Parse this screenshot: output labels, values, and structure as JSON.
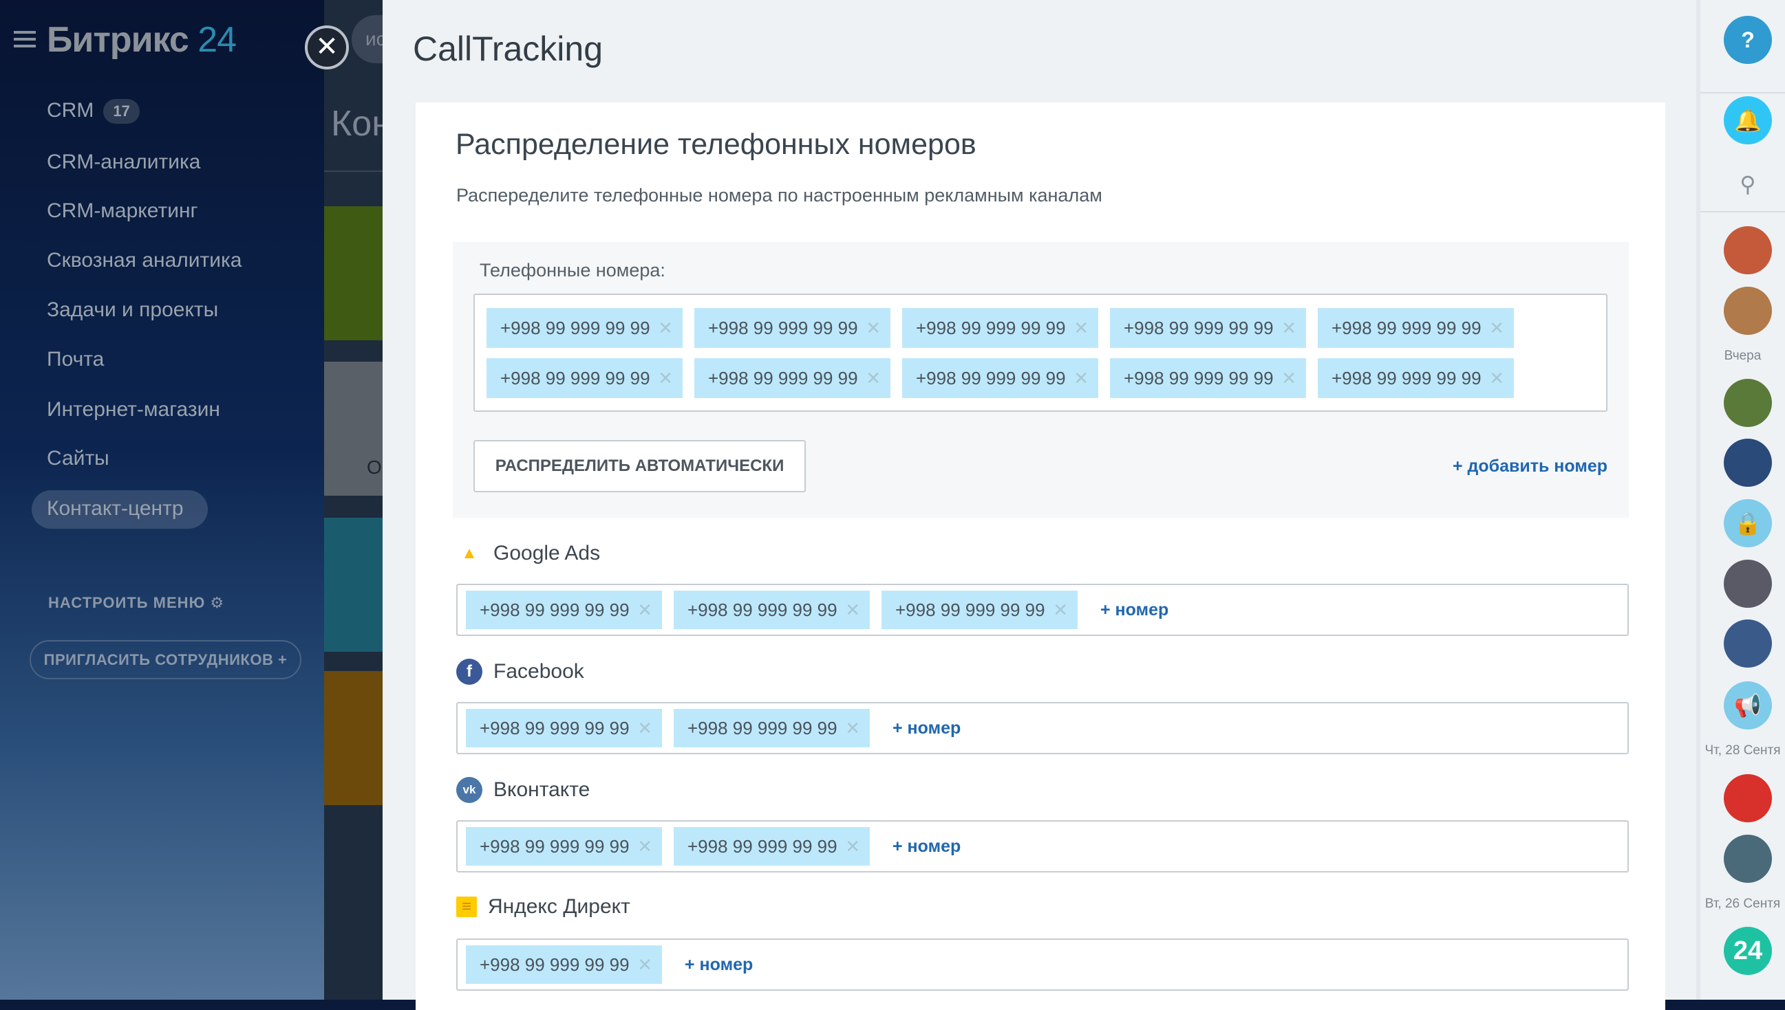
{
  "sidebar": {
    "logo_text": "Битрикс",
    "logo_num": "24",
    "items": [
      {
        "label": "CRM",
        "badge": "17"
      },
      {
        "label": "CRM-аналитика"
      },
      {
        "label": "CRM-маркетинг"
      },
      {
        "label": "Сквозная аналитика"
      },
      {
        "label": "Задачи и проекты"
      },
      {
        "label": "Почта"
      },
      {
        "label": "Интернет-магазин"
      },
      {
        "label": "Сайты"
      },
      {
        "label": "Контакт-центр"
      }
    ],
    "configure": "НАСТРОИТЬ МЕНЮ",
    "invite": "ПРИГЛАСИТЬ СОТРУДНИКОВ +"
  },
  "background_page": {
    "search_text": "иска",
    "title": "Кон",
    "tile_letter": "О"
  },
  "panel": {
    "title": "CallTracking",
    "heading": "Распределение телефонных номеров",
    "subtitle": "Распеределите телефонные номера по настроенным рекламным каналам",
    "numbers_label": "Телефонные номера:",
    "numbers": [
      "+998 99 999 99 99",
      "+998 99 999 99 99",
      "+998 99 999 99 99",
      "+998 99 999 99 99",
      "+998 99 999 99 99",
      "+998 99 999 99 99",
      "+998 99 999 99 99",
      "+998 99 999 99 99",
      "+998 99 999 99 99",
      "+998 99 999 99 99"
    ],
    "distribute_button": "РАСПРЕДЕЛИТЬ АВТОМАТИЧЕСКИ",
    "add_number": "+ добавить номер",
    "channels": [
      {
        "name": "Google Ads",
        "icon": "google-ads-icon",
        "color": "#4285f4",
        "numbers": [
          "+998 99 999 99 99",
          "+998 99 999 99 99",
          "+998 99 999 99 99"
        ],
        "add": "+ номер"
      },
      {
        "name": "Facebook",
        "icon": "facebook-icon",
        "color": "#3b5998",
        "numbers": [
          "+998 99 999 99 99",
          "+998 99 999 99 99"
        ],
        "add": "+ номер"
      },
      {
        "name": "Вконтакте",
        "icon": "vk-icon",
        "color": "#4a76a8",
        "numbers": [
          "+998 99 999 99 99",
          "+998 99 999 99 99"
        ],
        "add": "+ номер"
      },
      {
        "name": "Яндекс Директ",
        "icon": "yandex-direct-icon",
        "color": "#ffcc00",
        "numbers": [
          "+998 99 999 99 99"
        ],
        "add": "+ номер"
      }
    ]
  },
  "rightbar": {
    "labels": {
      "yesterday": "Вчера",
      "thu": "Чт, 28 Сентя",
      "tue": "Вт, 26 Сентя"
    },
    "help": "?",
    "b24": "24"
  },
  "colors": {
    "tag_bg": "#bde8fb",
    "link": "#2067b0",
    "accent": "#2fc6f6"
  }
}
